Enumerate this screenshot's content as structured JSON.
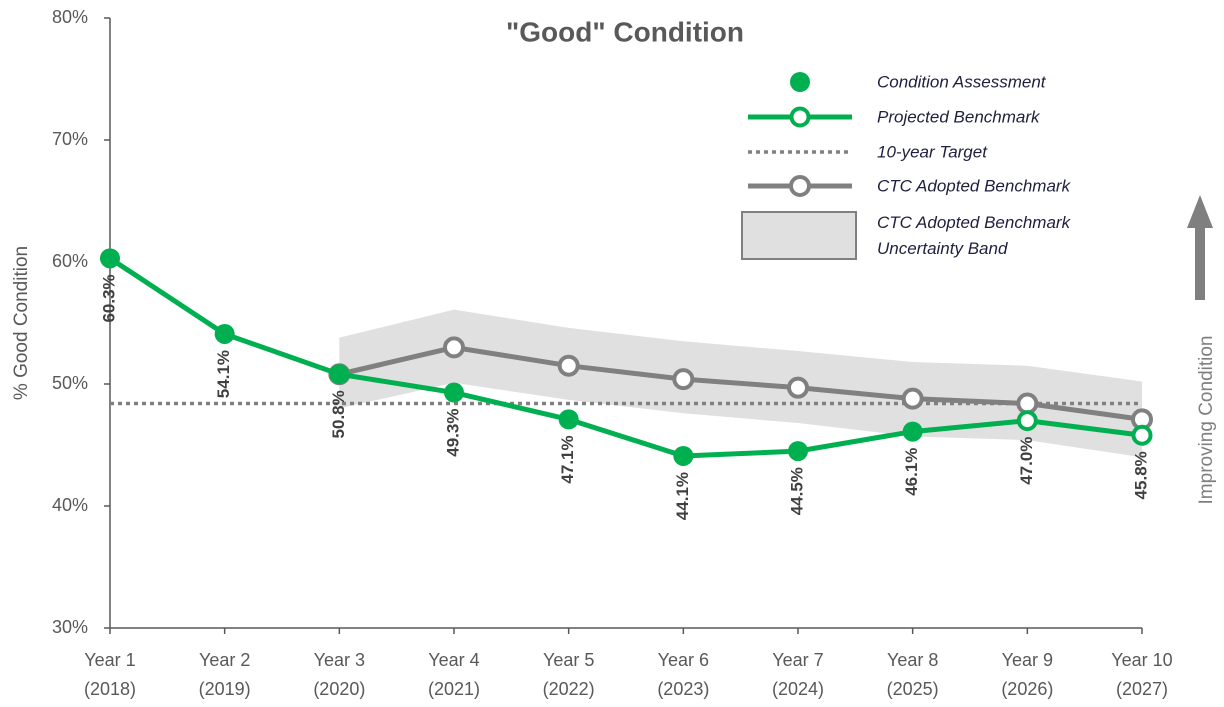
{
  "chart_data": {
    "type": "line",
    "title": "\"Good\" Condition",
    "y_label": "% Good Condition",
    "annotation": "Improving Condition",
    "categories": [
      [
        "Year 1",
        "(2018)"
      ],
      [
        "Year 2",
        "(2019)"
      ],
      [
        "Year 3",
        "(2020)"
      ],
      [
        "Year 4",
        "(2021)"
      ],
      [
        "Year 5",
        "(2022)"
      ],
      [
        "Year 6",
        "(2023)"
      ],
      [
        "Year 7",
        "(2024)"
      ],
      [
        "Year 8",
        "(2025)"
      ],
      [
        "Year 9",
        "(2026)"
      ],
      [
        "Year 10",
        "(2027)"
      ]
    ],
    "series": [
      {
        "name": "Condition Assessment",
        "color": "#00b050",
        "values": [
          60.3,
          54.1,
          50.8,
          49.3,
          47.1,
          44.1,
          44.5,
          46.1,
          null,
          null
        ],
        "value_labels": [
          "60.3%",
          "54.1%",
          "50.8%",
          "49.3%",
          "47.1%",
          "44.1%",
          "44.5%",
          "46.1%",
          null,
          null
        ]
      },
      {
        "name": "Projected Benchmark",
        "color": "#00b050",
        "values": [
          null,
          null,
          null,
          null,
          null,
          null,
          null,
          null,
          47.0,
          45.8
        ],
        "value_labels": [
          null,
          null,
          null,
          null,
          null,
          null,
          null,
          null,
          "47.0%",
          "45.8%"
        ]
      },
      {
        "name": "CTC Adopted Benchmark",
        "color": "#808080",
        "values": [
          null,
          null,
          50.8,
          53.0,
          51.5,
          50.4,
          49.7,
          48.8,
          48.4,
          47.1
        ]
      }
    ],
    "target": {
      "name": "10-year Target",
      "value": 48.4,
      "color": "#808080"
    },
    "band": {
      "name": "CTC Adopted Benchmark Uncertainty Band",
      "color": "#e0e0e0",
      "upper": [
        null,
        null,
        53.8,
        56.1,
        54.6,
        53.5,
        52.7,
        51.8,
        51.5,
        50.2
      ],
      "lower": [
        null,
        null,
        48.0,
        50.1,
        48.7,
        47.6,
        46.8,
        45.7,
        45.4,
        44.0
      ]
    },
    "ylim": [
      30,
      80
    ],
    "yticks": [
      {
        "value": 30,
        "label": "30%"
      },
      {
        "value": 40,
        "label": "40%"
      },
      {
        "value": 50,
        "label": "50%"
      },
      {
        "value": 60,
        "label": "60%"
      },
      {
        "value": 70,
        "label": "70%"
      },
      {
        "value": 80,
        "label": "80%"
      }
    ]
  }
}
